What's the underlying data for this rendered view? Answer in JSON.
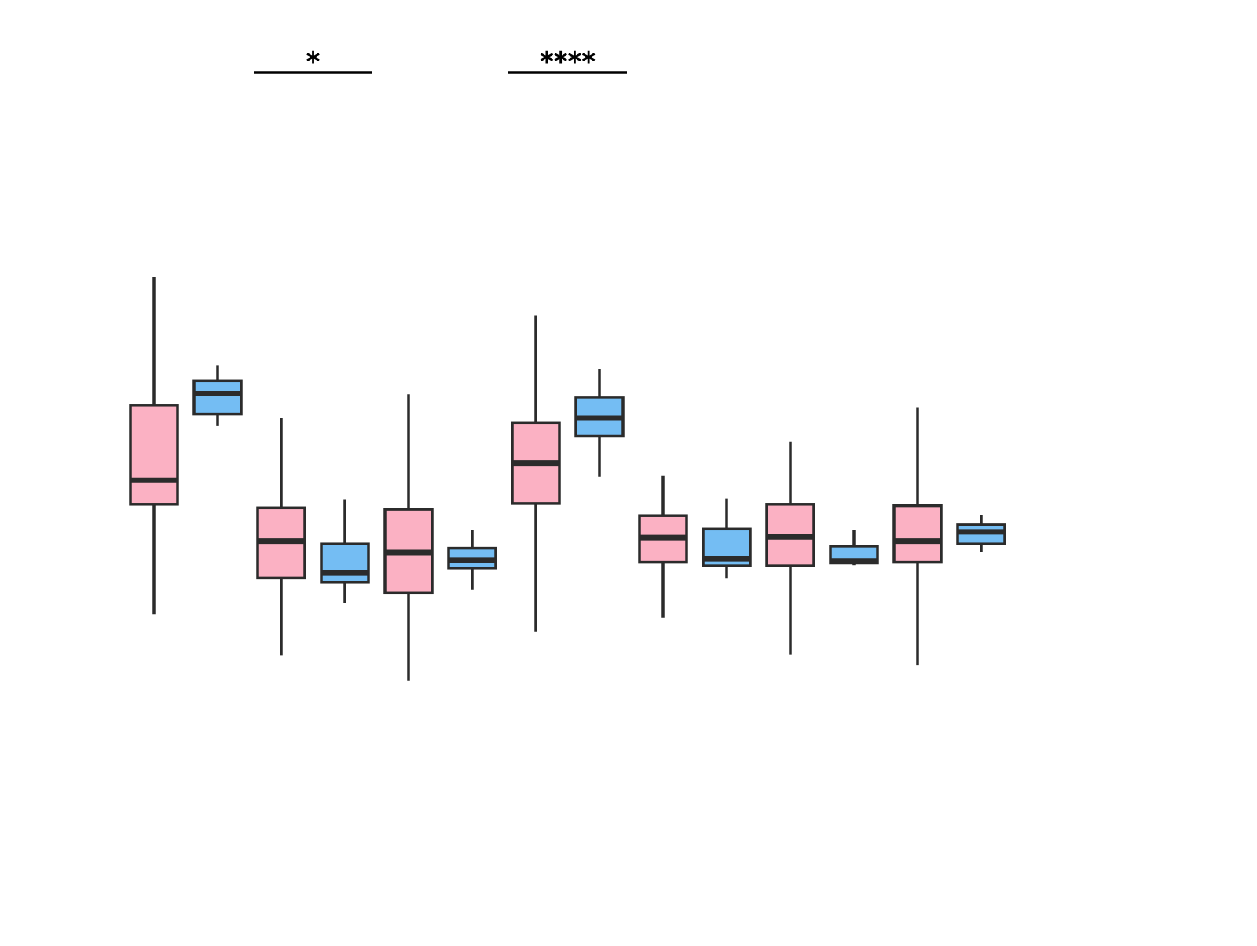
{
  "chart_data": {
    "type": "boxplot",
    "ylim": [
      0,
      100
    ],
    "grid": false,
    "legend": "none",
    "colors": {
      "pink": "#fbb1c3",
      "blue": "#74bdf3",
      "stroke": "#2b2b2b"
    },
    "boxes": [
      {
        "group": 1,
        "color": "pink",
        "whisker_low": 24.2,
        "q1": 39.8,
        "median": 43.2,
        "q3": 53.8,
        "whisker_high": 71.9
      },
      {
        "group": 2,
        "color": "blue",
        "whisker_low": 50.9,
        "q1": 52.6,
        "median": 55.5,
        "q3": 57.3,
        "whisker_high": 59.4
      },
      {
        "group": 3,
        "color": "pink",
        "whisker_low": 18.4,
        "q1": 29.4,
        "median": 34.6,
        "q3": 39.3,
        "whisker_high": 52.0
      },
      {
        "group": 4,
        "color": "blue",
        "whisker_low": 25.8,
        "q1": 28.8,
        "median": 30.1,
        "q3": 34.2,
        "whisker_high": 40.5
      },
      {
        "group": 5,
        "color": "pink",
        "whisker_low": 14.8,
        "q1": 27.3,
        "median": 33.0,
        "q3": 39.1,
        "whisker_high": 55.3
      },
      {
        "group": 6,
        "color": "blue",
        "whisker_low": 27.7,
        "q1": 30.8,
        "median": 31.9,
        "q3": 33.6,
        "whisker_high": 36.2
      },
      {
        "group": 7,
        "color": "pink",
        "whisker_low": 21.8,
        "q1": 39.9,
        "median": 45.6,
        "q3": 51.3,
        "whisker_high": 66.5
      },
      {
        "group": 8,
        "color": "blue",
        "whisker_low": 43.7,
        "q1": 49.5,
        "median": 52.0,
        "q3": 54.9,
        "whisker_high": 58.9
      },
      {
        "group": 9,
        "color": "pink",
        "whisker_low": 23.8,
        "q1": 31.6,
        "median": 35.1,
        "q3": 38.2,
        "whisker_high": 43.8
      },
      {
        "group": 10,
        "color": "blue",
        "whisker_low": 29.3,
        "q1": 31.1,
        "median": 32.1,
        "q3": 36.3,
        "whisker_high": 40.6
      },
      {
        "group": 11,
        "color": "pink",
        "whisker_low": 18.6,
        "q1": 31.1,
        "median": 35.2,
        "q3": 39.8,
        "whisker_high": 48.7
      },
      {
        "group": 12,
        "color": "blue",
        "whisker_low": 31.2,
        "q1": 31.5,
        "median": 31.8,
        "q3": 33.9,
        "whisker_high": 36.2
      },
      {
        "group": 13,
        "color": "pink",
        "whisker_low": 17.1,
        "q1": 31.6,
        "median": 34.6,
        "q3": 39.6,
        "whisker_high": 53.5
      },
      {
        "group": 14,
        "color": "blue",
        "whisker_low": 33.0,
        "q1": 34.2,
        "median": 35.9,
        "q3": 36.9,
        "whisker_high": 38.3
      }
    ],
    "significance": [
      {
        "between": [
          3,
          4
        ],
        "label": "*"
      },
      {
        "between": [
          7,
          8
        ],
        "label": "****"
      }
    ]
  }
}
